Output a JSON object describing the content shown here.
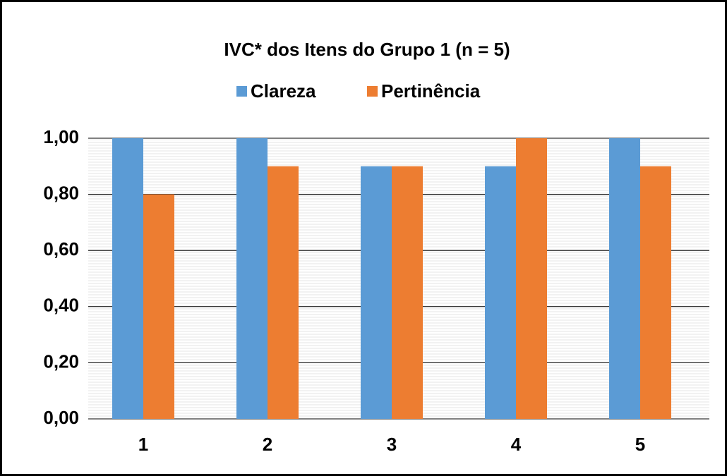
{
  "chart_data": {
    "type": "bar",
    "title": "IVC* dos Itens do Grupo 1 (n = 5)",
    "categories": [
      "1",
      "2",
      "3",
      "4",
      "5"
    ],
    "series": [
      {
        "name": "Clareza",
        "color": "#5b9bd5",
        "values": [
          1,
          1,
          0.9,
          0.9,
          1
        ]
      },
      {
        "name": "Pertinência",
        "color": "#ed7d31",
        "values": [
          0.8,
          0.9,
          0.9,
          1,
          0.9
        ]
      }
    ],
    "ylim": [
      0,
      1
    ],
    "yticks": [
      {
        "value": 0,
        "label": "0,00"
      },
      {
        "value": 0.2,
        "label": "0,20"
      },
      {
        "value": 0.4,
        "label": "0,40"
      },
      {
        "value": 0.6,
        "label": "0,60"
      },
      {
        "value": 0.8,
        "label": "0,80"
      },
      {
        "value": 1,
        "label": "1,00"
      }
    ],
    "grid": true,
    "legend": "top"
  }
}
